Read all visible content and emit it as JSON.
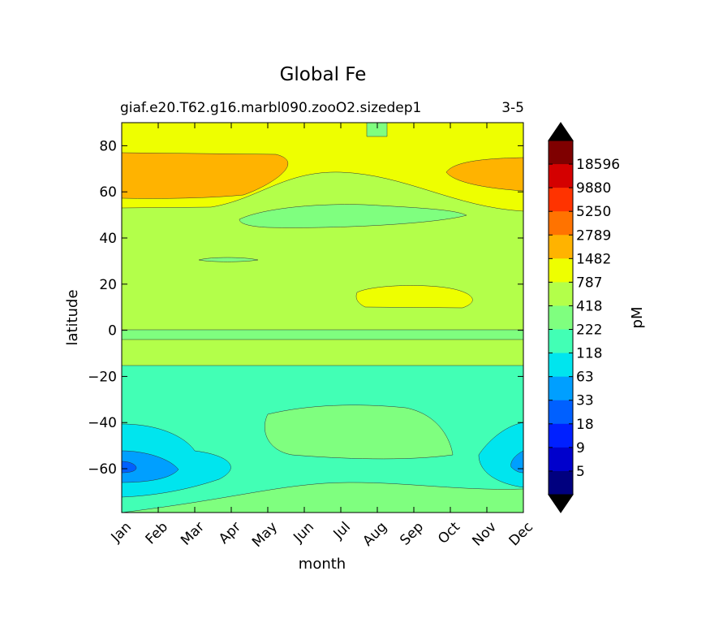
{
  "chart_data": {
    "type": "contourf",
    "title": "Global Fe",
    "subtitle_left": "giaf.e20.T62.g16.marbl090.zooO2.sizedep1",
    "subtitle_right": "3-5",
    "xlabel": "month",
    "ylabel": "latitude",
    "x_ticks": [
      "Jan",
      "Feb",
      "Mar",
      "Apr",
      "May",
      "Jun",
      "Jul",
      "Aug",
      "Sep",
      "Oct",
      "Nov",
      "Dec"
    ],
    "y_ticks": [
      80,
      60,
      40,
      20,
      0,
      -20,
      -40,
      -60
    ],
    "y_tick_labels": [
      "80",
      "60",
      "40",
      "20",
      "0",
      "−20",
      "−40",
      "−60"
    ],
    "xlim": [
      1,
      12
    ],
    "ylim": [
      -79,
      90
    ],
    "colorbar": {
      "label": "pM",
      "levels": [
        "18596",
        "9880",
        "5250",
        "2789",
        "1482",
        "787",
        "418",
        "222",
        "118",
        "63",
        "33",
        "18",
        "9",
        "5"
      ],
      "colors": [
        "#7f0000",
        "#d40000",
        "#ff3300",
        "#ff7300",
        "#ffb300",
        "#eeff00",
        "#b3ff4a",
        "#7fff7f",
        "#42ffb5",
        "#00e5ee",
        "#009fff",
        "#0060ff",
        "#0020ff",
        "#0000cc",
        "#00007f"
      ],
      "extend_colors": [
        "#000000",
        "#000000"
      ]
    },
    "bands": [
      {
        "class": 6,
        "lat_range": [
          60,
          90
        ],
        "months": "Jan-Dec",
        "value_range": "787-1482"
      },
      {
        "class": 4,
        "lat_range": [
          56,
          78
        ],
        "months": "Jan-Mar, Oct-Dec",
        "value_range": "1482-2789"
      },
      {
        "class": 7,
        "lat_range": [
          -14,
          55
        ],
        "months": "Jan-Dec",
        "value_range": "418-787"
      },
      {
        "class": 6,
        "lat_range": [
          10,
          20
        ],
        "months": "Aug-Oct",
        "value_range": "787-1482"
      },
      {
        "class": 8,
        "lat_range": [
          -5,
          0
        ],
        "months": "Jan-Dec",
        "value_range": "222-418"
      },
      {
        "class": 9,
        "lat_range": [
          -79,
          -16
        ],
        "months": "Jan-Dec",
        "value_range": "118-222"
      },
      {
        "class": 8,
        "lat_range": [
          -55,
          -35
        ],
        "months": "Jun-Oct",
        "value_range": "222-418"
      },
      {
        "class": 10,
        "lat_range": [
          -79,
          -40
        ],
        "months": "Jan-Mar, Nov-Dec",
        "value_range": "63-118"
      },
      {
        "class": 11,
        "lat_range": [
          -65,
          -55
        ],
        "months": "Jan-Feb",
        "value_range": "33-63"
      }
    ]
  }
}
